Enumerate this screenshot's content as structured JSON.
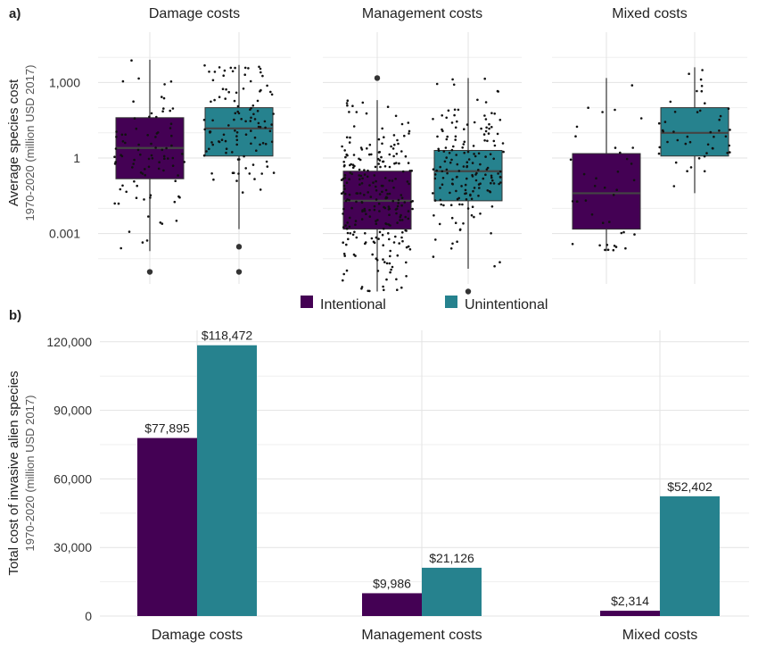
{
  "colors": {
    "intentional": "#440154",
    "unintentional": "#26828e"
  },
  "panel_a": {
    "label": "a)",
    "ylabel": "Average species cost",
    "ylabel_sub": "1970-2020 (million USD 2017)",
    "y_ticks": [
      {
        "value": 1000,
        "label": "1,000"
      },
      {
        "value": 1,
        "label": "1"
      },
      {
        "value": 0.001,
        "label": "0.001"
      }
    ]
  },
  "panel_b": {
    "label": "b)",
    "ylabel": "Total cost of invasive alien species",
    "ylabel_sub": "1970-2020 (million USD 2017)",
    "y_ticks": [
      {
        "value": 0,
        "label": "0"
      },
      {
        "value": 30000,
        "label": "30,000"
      },
      {
        "value": 60000,
        "label": "60,000"
      },
      {
        "value": 90000,
        "label": "90,000"
      },
      {
        "value": 120000,
        "label": "120,000"
      }
    ]
  },
  "legend": {
    "intentional": "Intentional",
    "unintentional": "Unintentional"
  },
  "chart_data": [
    {
      "type": "box",
      "scale": "log10",
      "ylim": [
        1e-05,
        100000
      ],
      "ylabel": "Average species cost 1970-2020 (million USD 2017)",
      "facets": [
        "Damage costs",
        "Management costs",
        "Mixed costs"
      ],
      "series": [
        {
          "name": "Intentional",
          "boxes": [
            {
              "facet": "Damage costs",
              "whisker_low": 0.0002,
              "q1": 0.15,
              "median": 2.5,
              "q3": 40,
              "whisker_high": 8000,
              "outliers": [
                3e-05
              ]
            },
            {
              "facet": "Management costs",
              "whisker_low": 5e-06,
              "q1": 0.0015,
              "median": 0.02,
              "q3": 0.3,
              "whisker_high": 200,
              "outliers": [
                1500
              ]
            },
            {
              "facet": "Mixed costs",
              "whisker_low": 0.0002,
              "q1": 0.0015,
              "median": 0.04,
              "q3": 1.5,
              "whisker_high": 1500,
              "outliers": []
            }
          ]
        },
        {
          "name": "Unintentional",
          "boxes": [
            {
              "facet": "Damage costs",
              "whisker_low": 0.0015,
              "q1": 1.2,
              "median": 15,
              "q3": 100,
              "whisker_high": 5000,
              "outliers": [
                0.0003,
                3e-05
              ]
            },
            {
              "facet": "Management costs",
              "whisker_low": 4e-05,
              "q1": 0.02,
              "median": 0.3,
              "q3": 2,
              "whisker_high": 1500,
              "outliers": [
                5e-06
              ]
            },
            {
              "facet": "Mixed costs",
              "whisker_low": 0.04,
              "q1": 1.2,
              "median": 10,
              "q3": 100,
              "whisker_high": 4000,
              "outliers": []
            }
          ]
        }
      ]
    },
    {
      "type": "bar",
      "categories": [
        "Damage costs",
        "Management costs",
        "Mixed costs"
      ],
      "series": [
        {
          "name": "Intentional",
          "values": [
            77895,
            9986,
            2314
          ],
          "labels": [
            "$77,895",
            "$9,986",
            "$2,314"
          ]
        },
        {
          "name": "Unintentional",
          "values": [
            118472,
            21126,
            52402
          ],
          "labels": [
            "$118,472",
            "$21,126",
            "$52,402"
          ]
        }
      ],
      "ylim": [
        0,
        125000
      ],
      "ylabel": "Total cost of invasive alien species 1970-2020 (million USD 2017)"
    }
  ]
}
